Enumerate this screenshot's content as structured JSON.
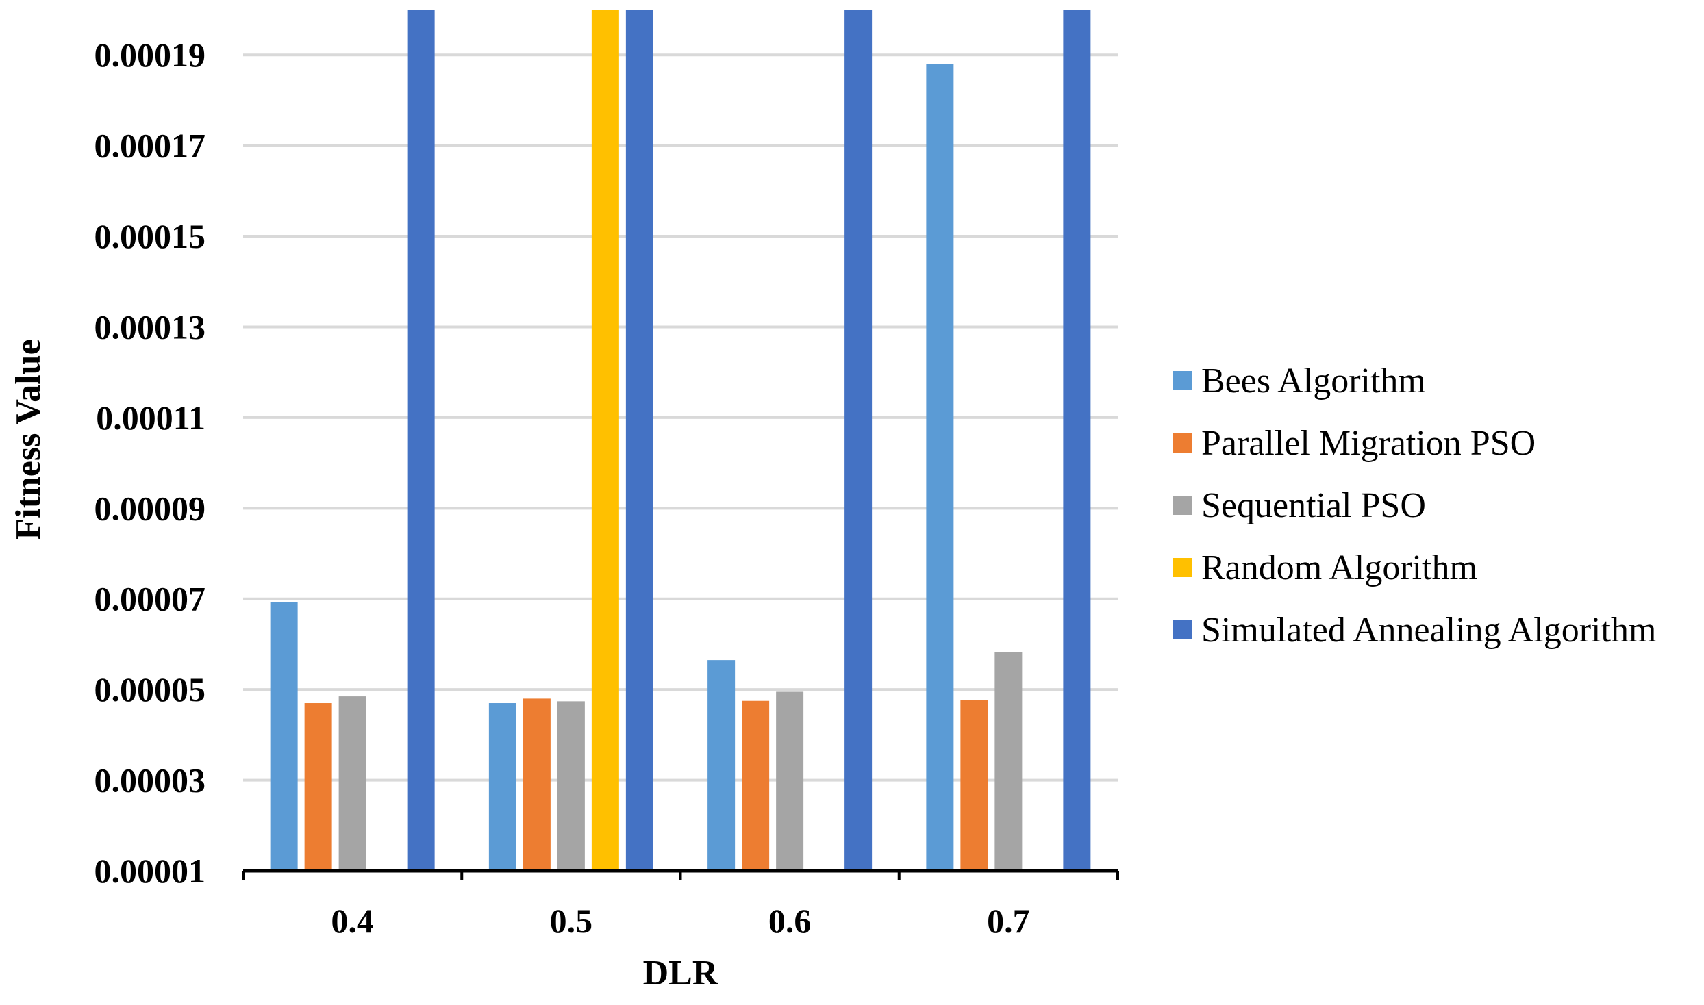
{
  "chart_data": {
    "type": "bar",
    "title": "",
    "xlabel": "DLR",
    "ylabel": "Fitness Value",
    "categories": [
      "0.4",
      "0.5",
      "0.6",
      "0.7"
    ],
    "ylim": [
      1e-05,
      0.0002
    ],
    "yticks": [
      1e-05,
      3e-05,
      5e-05,
      7e-05,
      9e-05,
      0.00011,
      0.00013,
      0.00015,
      0.00017,
      0.00019
    ],
    "ytick_labels": [
      "0.00001",
      "0.00003",
      "0.00005",
      "0.00007",
      "0.00009",
      "0.00011",
      "0.00013",
      "0.00015",
      "0.00017",
      "0.00019"
    ],
    "grid": true,
    "legend_position": "right",
    "series": [
      {
        "name": "Bees Algorithm",
        "color": "#5B9BD5",
        "values": [
          6.93e-05,
          4.7e-05,
          5.65e-05,
          0.000188
        ]
      },
      {
        "name": "Parallel Migration PSO",
        "color": "#ED7D31",
        "values": [
          4.7e-05,
          4.8e-05,
          4.75e-05,
          4.77e-05
        ]
      },
      {
        "name": "Sequential PSO",
        "color": "#A5A5A5",
        "values": [
          4.85e-05,
          4.74e-05,
          4.95e-05,
          5.83e-05
        ]
      },
      {
        "name": "Random Algorithm",
        "color": "#FFC000",
        "values": [
          null,
          0.0002,
          null,
          null
        ]
      },
      {
        "name": "Simulated Annealing Algorithm",
        "color": "#4472C4",
        "values": [
          0.0002,
          0.0002,
          0.0002,
          0.0002
        ]
      }
    ]
  }
}
